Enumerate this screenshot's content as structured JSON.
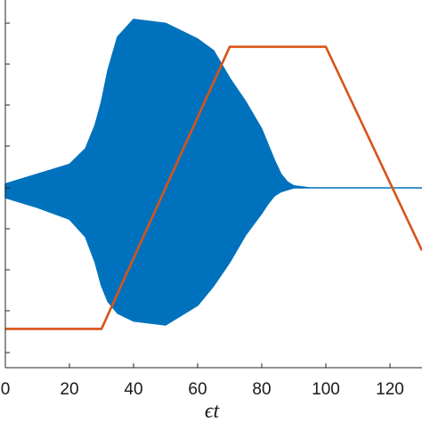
{
  "chart_data": {
    "type": "line",
    "xlabel": "ϵt",
    "xlim": [
      0,
      130
    ],
    "ylim": [
      -1.0,
      1.0
    ],
    "x_ticks": [
      0,
      20,
      40,
      60,
      80,
      100,
      120
    ],
    "x_tick_labels": [
      "0",
      "20",
      "40",
      "60",
      "80",
      "100",
      "120"
    ],
    "grid": false,
    "series": [
      {
        "color": "#0072BD",
        "style": "rapid oscillation, drawn as filled envelope",
        "envelope_x": [
          0,
          10,
          20,
          25,
          28,
          30,
          32,
          35,
          40,
          50,
          60,
          65,
          70,
          75,
          80,
          82,
          84,
          86,
          88,
          90,
          95,
          100,
          130
        ],
        "envelope_upper": [
          0.02,
          0.07,
          0.12,
          0.2,
          0.32,
          0.44,
          0.6,
          0.77,
          0.86,
          0.84,
          0.76,
          0.7,
          0.56,
          0.44,
          0.3,
          0.22,
          0.14,
          0.07,
          0.03,
          0.01,
          0.0,
          0.0,
          0.0
        ],
        "envelope_lower": [
          -0.05,
          -0.1,
          -0.16,
          -0.25,
          -0.38,
          -0.5,
          -0.58,
          -0.64,
          -0.68,
          -0.7,
          -0.6,
          -0.5,
          -0.38,
          -0.24,
          -0.13,
          -0.08,
          -0.04,
          -0.02,
          -0.01,
          0.0,
          0.0,
          0.0,
          0.0
        ]
      },
      {
        "color": "#D95319",
        "x": [
          0,
          30,
          70,
          100,
          130
        ],
        "y": [
          -0.72,
          -0.72,
          0.72,
          0.72,
          -0.32
        ]
      }
    ]
  }
}
